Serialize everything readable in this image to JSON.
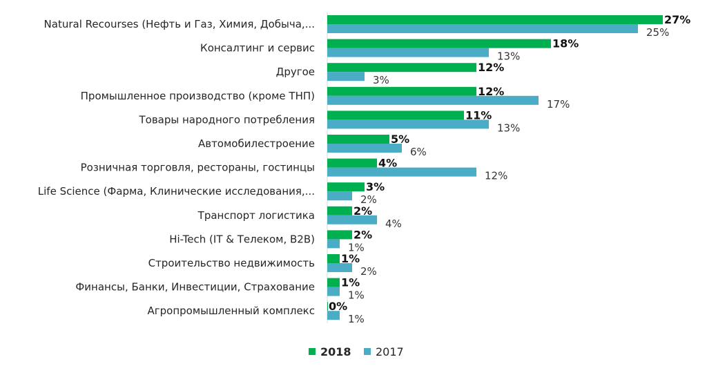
{
  "chart_data": {
    "type": "bar",
    "orientation": "horizontal",
    "title": "",
    "xlabel": "",
    "ylabel": "",
    "xlim": [
      0,
      27
    ],
    "categories": [
      "Natural Recourses (Нефть и Газ, Химия,  Добыча,...",
      "Консалтинг и сервис",
      "Другое",
      "Промышленное производство (кроме ТНП)",
      "Товары народного потребления",
      "Автомобилестроение",
      "Розничная торговля, рестораны, гостинцы",
      "Life Science (Фарма, Клинические исследования,...",
      "Транспорт логистика",
      "Hi-Tech (IT & Телеком, B2B)",
      "Строительство недвижимость",
      "Финансы, Банки, Инвестиции, Страхование",
      "Агропромышленный комплекс"
    ],
    "series": [
      {
        "name": "2018",
        "color": "#00B050",
        "values": [
          27,
          18,
          12,
          12,
          11,
          5,
          4,
          3,
          2,
          2,
          1,
          1,
          0
        ],
        "labels": [
          "27%",
          "18%",
          "12%",
          "12%",
          "11%",
          "5%",
          "4%",
          "3%",
          "2%",
          "2%",
          "1%",
          "1%",
          "0%"
        ]
      },
      {
        "name": "2017",
        "color": "#4BACC6",
        "values": [
          25,
          13,
          3,
          17,
          13,
          6,
          12,
          2,
          4,
          1,
          2,
          1,
          1
        ],
        "labels": [
          "25%",
          "13%",
          "3%",
          "17%",
          "13%",
          "6%",
          "12%",
          "2%",
          "4%",
          "1%",
          "2%",
          "1%",
          "1%"
        ]
      }
    ],
    "legend": {
      "position": "bottom",
      "items": [
        "2018",
        "2017"
      ]
    }
  }
}
